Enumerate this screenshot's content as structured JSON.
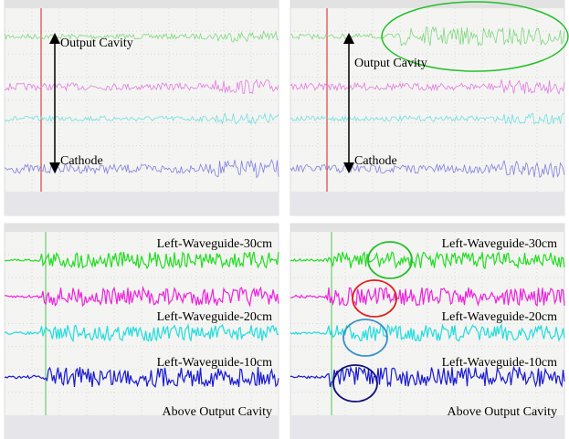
{
  "panels": [
    {
      "labels": [
        "Output Cavity",
        "Cathode"
      ]
    },
    {
      "labels": [
        "Output Cavity",
        "Cathode"
      ]
    },
    {
      "labels": [
        "Left-Waveguide-30cm",
        "Left-Waveguide-20cm",
        "Left-Waveguide-10cm",
        "Above Output Cavity"
      ]
    },
    {
      "labels": [
        "Left-Waveguide-30cm",
        "Left-Waveguide-20cm",
        "Left-Waveguide-10cm",
        "Above Output Cavity"
      ]
    }
  ]
}
